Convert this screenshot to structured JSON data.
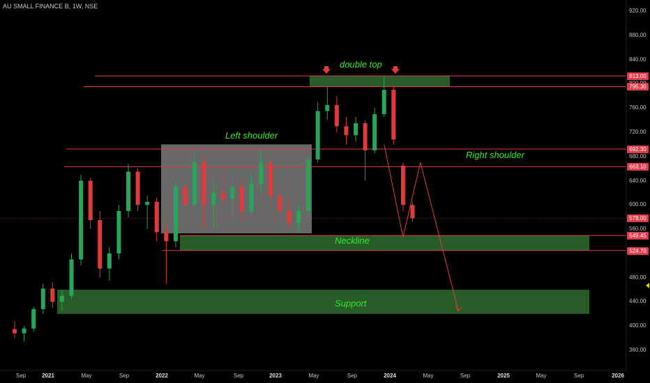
{
  "header": {
    "title": "AU SMALL FINANCE B, 1W, NSE"
  },
  "price_axis": {
    "labels": [
      "920.00",
      "880.00",
      "840.00",
      "800.00",
      "760.00",
      "720.00",
      "680.00",
      "640.00",
      "600.00",
      "560.00",
      "520.00",
      "480.00",
      "440.00",
      "400.00",
      "360.00"
    ],
    "tags": [
      "813.00",
      "795.30",
      "692.30",
      "663.10",
      "578.00",
      "549.45",
      "524.70"
    ]
  },
  "time_axis": {
    "labels": [
      "Sep",
      "2021",
      "May",
      "Sep",
      "2022",
      "May",
      "Sep",
      "2023",
      "May",
      "Sep",
      "2024",
      "May",
      "Sep",
      "2025",
      "May",
      "Sep",
      "2026"
    ]
  },
  "annotations": {
    "double_top": "double top",
    "left_shoulder": "Left shoulder",
    "right_shoulder": "Right shoulder",
    "neckline": "Neckline",
    "support": "Support"
  },
  "colors": {
    "background": "#000000",
    "candle_up": "#26a65b",
    "candle_down": "#e03a3a",
    "level_line": "#e23b4a",
    "zone_fill": "#2e6b2e",
    "annotation_text": "#35e82e"
  },
  "chart_data": {
    "type": "candlestick",
    "symbol": "AU SMALL FINANCE B",
    "interval": "1W",
    "exchange": "NSE",
    "ylim": [
      330,
      940
    ],
    "y_ticks": [
      360,
      400,
      440,
      480,
      520,
      560,
      600,
      640,
      680,
      720,
      760,
      800,
      840,
      880,
      920
    ],
    "horizontal_levels": [
      813.0,
      795.3,
      692.3,
      663.1,
      578.0,
      549.45,
      524.7
    ],
    "zones": [
      {
        "label": "double top",
        "from": 795.3,
        "to": 813.0
      },
      {
        "label": "Neckline",
        "from": 524.7,
        "to": 549.45
      },
      {
        "label": "Support",
        "from": 420,
        "to": 460
      },
      {
        "label": "Left shoulder",
        "from": 553,
        "to": 700
      }
    ],
    "last_price": 578.0,
    "path": [
      {
        "date": "2023-12-15",
        "price": 700
      },
      {
        "date": "2024-02-15",
        "price": 547
      },
      {
        "date": "2024-04-10",
        "price": 670
      },
      {
        "date": "2024-08-10",
        "price": 425
      }
    ],
    "candles": [
      {
        "date": "2020-09",
        "open": 395,
        "high": 408,
        "low": 380,
        "close": 388
      },
      {
        "date": "2020-10",
        "open": 388,
        "high": 400,
        "low": 375,
        "close": 396
      },
      {
        "date": "2020-11",
        "open": 396,
        "high": 432,
        "low": 390,
        "close": 428
      },
      {
        "date": "2020-12",
        "open": 428,
        "high": 470,
        "low": 420,
        "close": 462
      },
      {
        "date": "2021-01",
        "open": 462,
        "high": 472,
        "low": 430,
        "close": 440
      },
      {
        "date": "2021-02",
        "open": 440,
        "high": 460,
        "low": 425,
        "close": 450
      },
      {
        "date": "2021-03",
        "open": 450,
        "high": 520,
        "low": 445,
        "close": 510
      },
      {
        "date": "2021-04",
        "open": 510,
        "high": 650,
        "low": 500,
        "close": 640
      },
      {
        "date": "2021-05",
        "open": 640,
        "high": 645,
        "low": 560,
        "close": 575
      },
      {
        "date": "2021-06",
        "open": 575,
        "high": 590,
        "low": 480,
        "close": 495
      },
      {
        "date": "2021-07",
        "open": 495,
        "high": 530,
        "low": 475,
        "close": 520
      },
      {
        "date": "2021-08",
        "open": 520,
        "high": 600,
        "low": 510,
        "close": 590
      },
      {
        "date": "2021-09",
        "open": 590,
        "high": 668,
        "low": 580,
        "close": 655
      },
      {
        "date": "2021-10",
        "open": 655,
        "high": 660,
        "low": 590,
        "close": 600
      },
      {
        "date": "2021-11",
        "open": 600,
        "high": 615,
        "low": 560,
        "close": 605
      },
      {
        "date": "2021-12",
        "open": 605,
        "high": 612,
        "low": 540,
        "close": 555
      },
      {
        "date": "2022-01",
        "open": 555,
        "high": 570,
        "low": 470,
        "close": 540
      },
      {
        "date": "2022-02",
        "open": 540,
        "high": 640,
        "low": 530,
        "close": 630
      },
      {
        "date": "2022-03",
        "open": 630,
        "high": 650,
        "low": 580,
        "close": 600
      },
      {
        "date": "2022-04",
        "open": 600,
        "high": 690,
        "low": 595,
        "close": 670
      },
      {
        "date": "2022-05",
        "open": 670,
        "high": 680,
        "low": 560,
        "close": 600
      },
      {
        "date": "2022-06",
        "open": 600,
        "high": 640,
        "low": 560,
        "close": 620
      },
      {
        "date": "2022-07",
        "open": 620,
        "high": 660,
        "low": 600,
        "close": 610
      },
      {
        "date": "2022-08",
        "open": 610,
        "high": 640,
        "low": 580,
        "close": 630
      },
      {
        "date": "2022-09",
        "open": 630,
        "high": 645,
        "low": 575,
        "close": 590
      },
      {
        "date": "2022-10",
        "open": 590,
        "high": 650,
        "low": 585,
        "close": 635
      },
      {
        "date": "2022-11",
        "open": 635,
        "high": 690,
        "low": 620,
        "close": 670
      },
      {
        "date": "2022-12",
        "open": 670,
        "high": 675,
        "low": 600,
        "close": 615
      },
      {
        "date": "2023-01",
        "open": 615,
        "high": 640,
        "low": 580,
        "close": 590
      },
      {
        "date": "2023-02",
        "open": 590,
        "high": 610,
        "low": 562,
        "close": 570
      },
      {
        "date": "2023-03",
        "open": 570,
        "high": 600,
        "low": 555,
        "close": 590
      },
      {
        "date": "2023-04",
        "open": 590,
        "high": 680,
        "low": 585,
        "close": 675
      },
      {
        "date": "2023-05",
        "open": 675,
        "high": 770,
        "low": 670,
        "close": 755
      },
      {
        "date": "2023-06",
        "open": 755,
        "high": 795,
        "low": 740,
        "close": 765
      },
      {
        "date": "2023-07",
        "open": 765,
        "high": 780,
        "low": 720,
        "close": 730
      },
      {
        "date": "2023-08",
        "open": 730,
        "high": 745,
        "low": 700,
        "close": 715
      },
      {
        "date": "2023-09",
        "open": 715,
        "high": 745,
        "low": 705,
        "close": 735
      },
      {
        "date": "2023-10",
        "open": 735,
        "high": 740,
        "low": 640,
        "close": 690
      },
      {
        "date": "2023-11",
        "open": 690,
        "high": 760,
        "low": 685,
        "close": 750
      },
      {
        "date": "2023-12",
        "open": 750,
        "high": 813,
        "low": 745,
        "close": 790
      },
      {
        "date": "2024-01",
        "open": 790,
        "high": 795,
        "low": 700,
        "close": 708
      },
      {
        "date": "2024-02",
        "open": 665,
        "high": 670,
        "low": 590,
        "close": 600
      },
      {
        "date": "2024-03",
        "open": 600,
        "high": 605,
        "low": 572,
        "close": 578
      }
    ]
  }
}
